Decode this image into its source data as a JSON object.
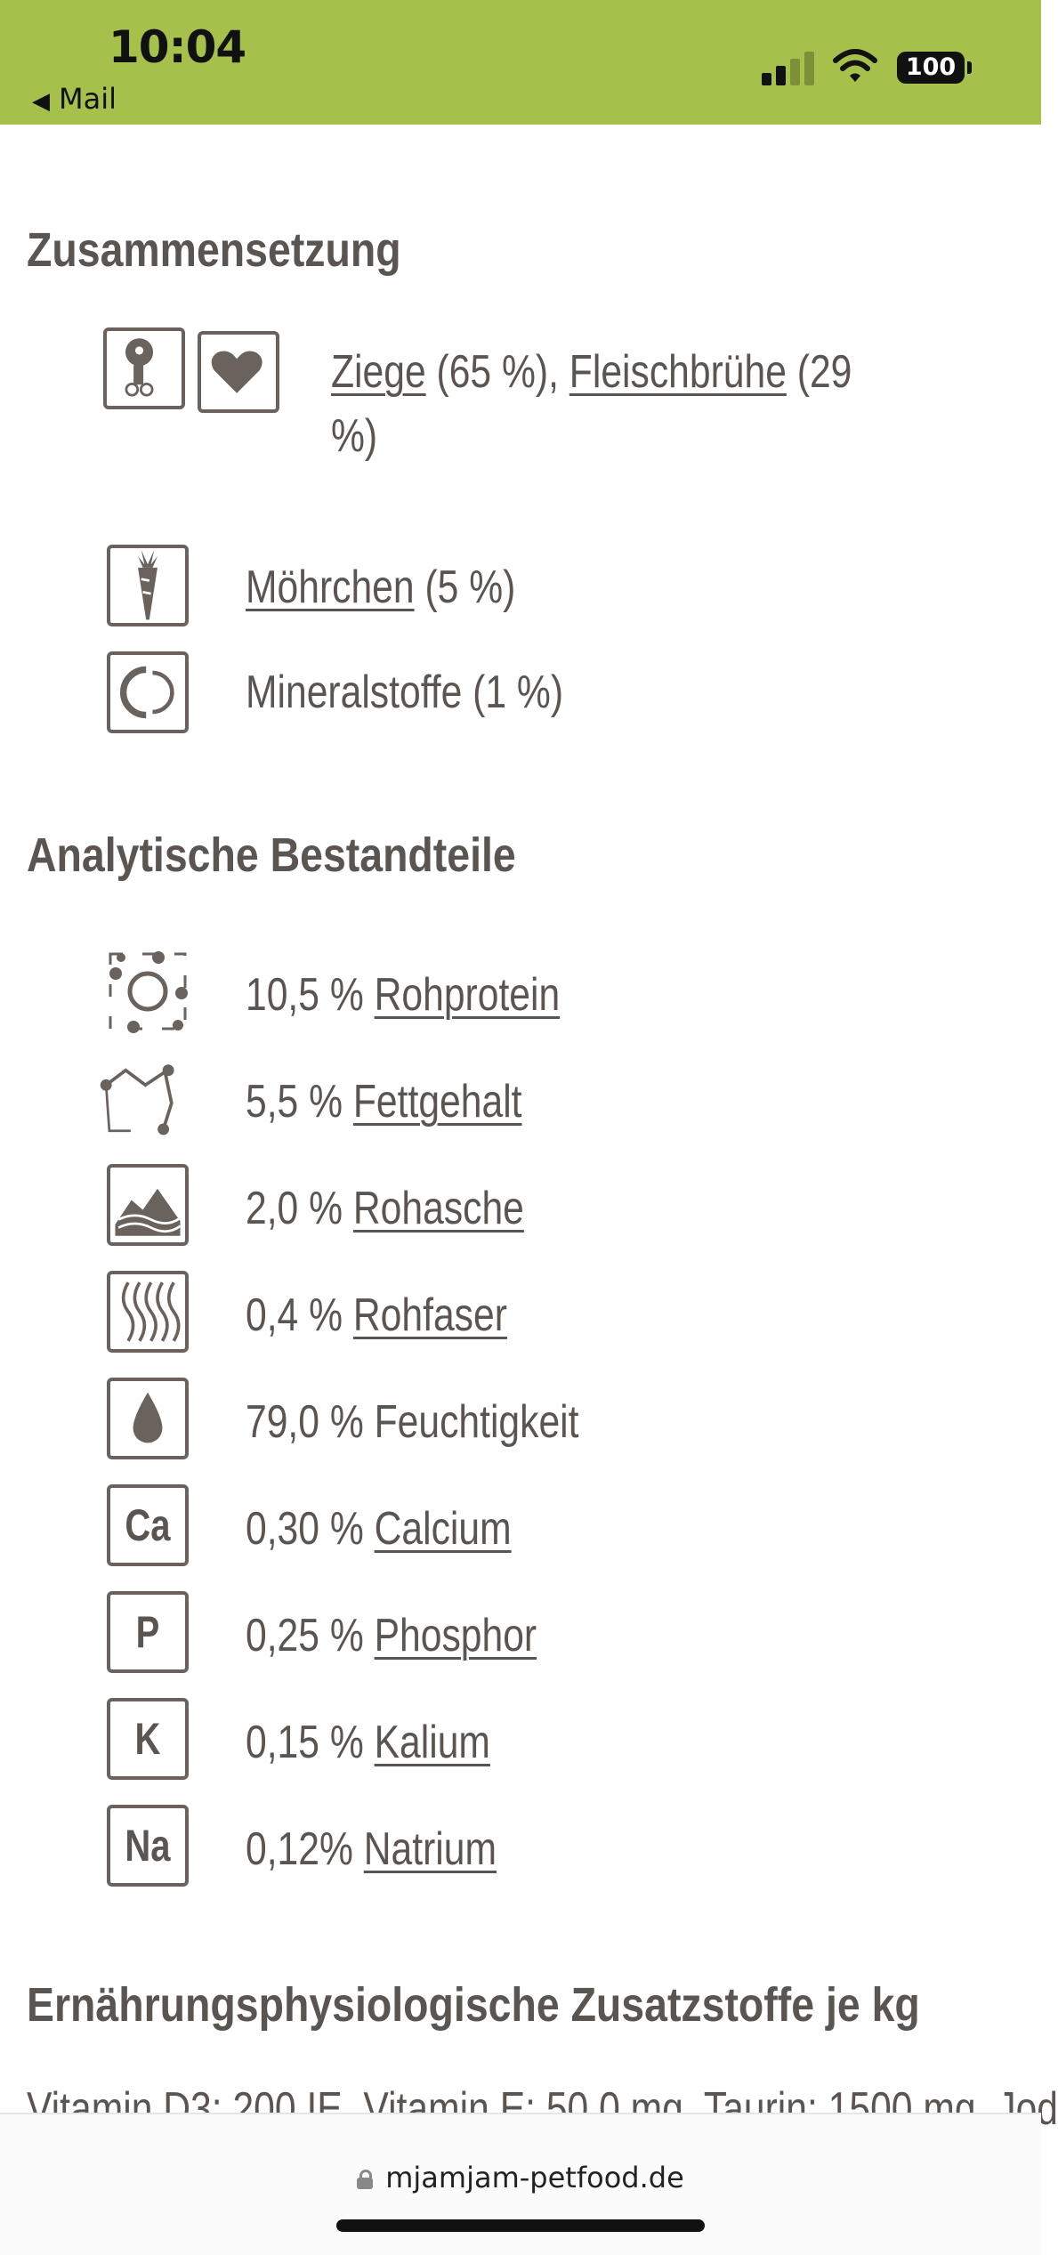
{
  "status_bar": {
    "time": "10:04",
    "back_label": "Mail",
    "battery": "100",
    "signal_icon": "signal-bars-icon",
    "wifi_icon": "wifi-icon"
  },
  "sections": {
    "composition": {
      "heading": "Zusammensetzung",
      "items": [
        {
          "icon": "meat-heart-icon",
          "link1": "Ziege",
          "text1": " (65 %), ",
          "link2": "Fleischbrühe",
          "text2": " (29",
          "line2": "%)"
        },
        {
          "icon": "carrot-icon",
          "link": "Möhrchen",
          "text": " (5 %)"
        },
        {
          "icon": "mineral-icon",
          "text": "Mineralstoffe (1 %)"
        }
      ]
    },
    "analytical": {
      "heading": "Analytische Bestandteile",
      "items": [
        {
          "icon": "protein-icon",
          "value": "10,5 % ",
          "label": "Rohprotein",
          "linked": true
        },
        {
          "icon": "fat-icon",
          "value": "5,5 % ",
          "label": "Fettgehalt",
          "linked": true
        },
        {
          "icon": "ash-icon",
          "value": "2,0 % ",
          "label": "Rohasche",
          "linked": true
        },
        {
          "icon": "fiber-icon",
          "value": "0,4 % ",
          "label": "Rohfaser",
          "linked": true
        },
        {
          "icon": "moisture-icon",
          "value": "79,0 % ",
          "label": "Feuchtigkeit",
          "linked": false
        },
        {
          "icon": "calcium-icon",
          "symbol": "Ca",
          "value": "0,30 % ",
          "label": "Calcium",
          "linked": true
        },
        {
          "icon": "phosphor-icon",
          "symbol": "P",
          "value": "0,25 % ",
          "label": "Phosphor",
          "linked": true
        },
        {
          "icon": "kalium-icon",
          "symbol": "K",
          "value": "0,15 % ",
          "label": "Kalium",
          "linked": true
        },
        {
          "icon": "natrium-icon",
          "symbol": "Na",
          "value": "0,12% ",
          "label": "Natrium",
          "linked": true
        }
      ]
    },
    "additives": {
      "heading": "Ernährungsphysiologische Zusatzstoffe je kg",
      "text": "Vitamin D3: 200 IE, Vitamin E: 50,0 mg, Taurin: 1500 mg, Jod"
    }
  },
  "browser": {
    "url": "mjamjam-petfood.de"
  }
}
